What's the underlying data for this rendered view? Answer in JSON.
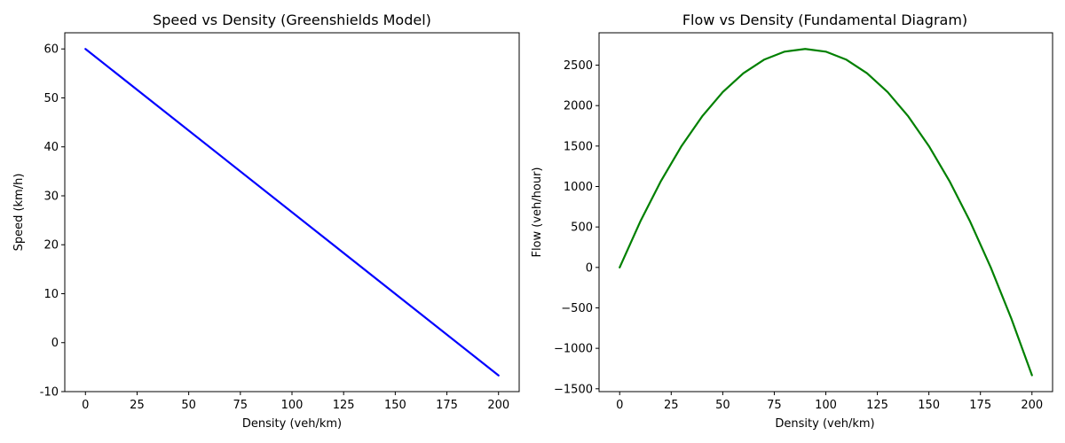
{
  "chart_data": [
    {
      "type": "line",
      "title": "Speed vs Density (Greenshields Model)",
      "xlabel": "Density (veh/km)",
      "ylabel": "Speed (km/h)",
      "xlim": [
        -10,
        210
      ],
      "ylim": [
        -10,
        63.3
      ],
      "xticks": [
        0,
        25,
        50,
        75,
        100,
        125,
        150,
        175,
        200
      ],
      "yticks": [
        -10,
        0,
        10,
        20,
        30,
        40,
        50,
        60
      ],
      "grid": false,
      "series": [
        {
          "color": "#0000ff",
          "x": [
            0,
            200
          ],
          "y": [
            60,
            -6.7
          ]
        }
      ]
    },
    {
      "type": "line",
      "title": "Flow vs Density (Fundamental Diagram)",
      "xlabel": "Density (veh/km)",
      "ylabel": "Flow (veh/hour)",
      "xlim": [
        -10,
        210
      ],
      "ylim": [
        -1535,
        2900
      ],
      "xticks": [
        0,
        25,
        50,
        75,
        100,
        125,
        150,
        175,
        200
      ],
      "yticks": [
        -1500,
        -1000,
        -500,
        0,
        500,
        1000,
        1500,
        2000,
        2500
      ],
      "ytick_labels": [
        "−1500",
        "−1000",
        "−500",
        "0",
        "500",
        "1000",
        "1500",
        "2000",
        "2500"
      ],
      "grid": false,
      "series": [
        {
          "color": "#008000",
          "x": [
            0,
            10,
            20,
            30,
            40,
            50,
            60,
            70,
            80,
            90,
            100,
            110,
            120,
            130,
            140,
            150,
            160,
            170,
            180,
            190,
            200
          ],
          "y": [
            0,
            567,
            1067,
            1500,
            1867,
            2167,
            2400,
            2567,
            2667,
            2700,
            2667,
            2567,
            2400,
            2167,
            1867,
            1500,
            1067,
            567,
            0,
            -633,
            -1333
          ]
        }
      ]
    }
  ]
}
